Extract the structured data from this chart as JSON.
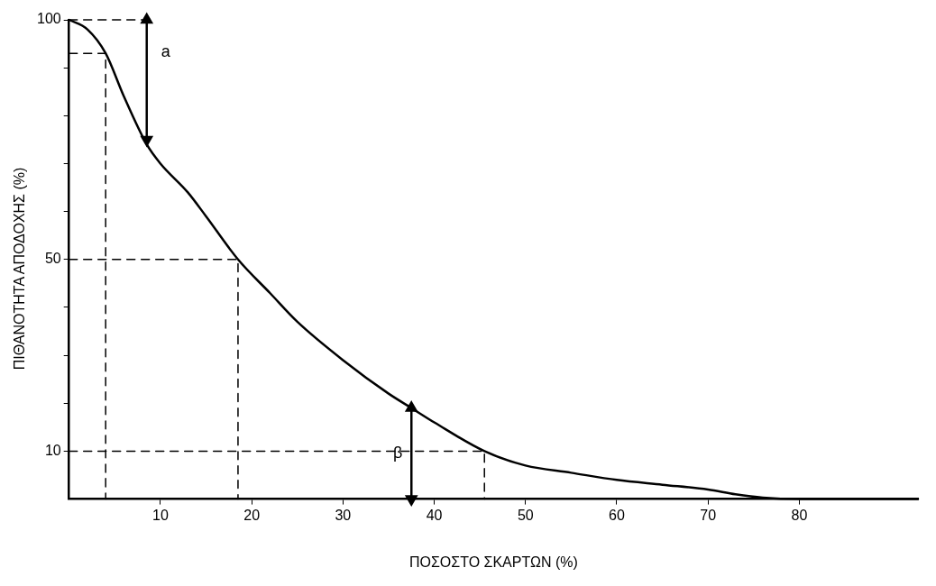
{
  "chart_data": {
    "type": "line",
    "xlabel": "ΠΟΣΟΣΤΟ ΣΚΑΡΤΩΝ (%)",
    "ylabel": "ΠΙΘΑΝΟΤΗΤΑ ΑΠΟΔΟΧΗΣ (%)",
    "xlim": [
      0,
      93
    ],
    "xticks": [
      10,
      20,
      30,
      40,
      50,
      60,
      70,
      80
    ],
    "ylim": [
      0,
      100
    ],
    "yticks": [
      10,
      {
        "value": 20,
        "label": null
      },
      {
        "value": 30,
        "label": null
      },
      {
        "value": 40,
        "label": null
      },
      50,
      {
        "value": 60,
        "label": null
      },
      {
        "value": 70,
        "label": null
      },
      {
        "value": 80,
        "label": null
      },
      {
        "value": 90,
        "label": null
      },
      100
    ],
    "grid": false,
    "legend": false,
    "line_style": "solid",
    "series": [
      {
        "color": "#000000",
        "x": [
          0,
          2,
          4,
          6,
          8.5,
          10,
          13,
          15,
          18.5,
          22,
          25,
          30,
          35,
          37.5,
          40,
          45.5,
          50,
          55,
          60,
          65,
          70,
          73,
          76,
          80,
          93
        ],
        "values": [
          100,
          98,
          93,
          84,
          74,
          70,
          64,
          59,
          50,
          43,
          37,
          29,
          22,
          19,
          16,
          10,
          7,
          5.5,
          4,
          3,
          2,
          1,
          0.3,
          0,
          0
        ]
      },
      {
        "color": "#000000",
        "line_style": "dashed",
        "x": [
          0,
          8.5
        ],
        "values": [
          100,
          100
        ]
      },
      {
        "color": "#000000",
        "line_style": "dashed",
        "x": [
          0,
          4,
          4
        ],
        "values": [
          93,
          93,
          0
        ]
      },
      {
        "color": "#000000",
        "line_style": "dashed",
        "x": [
          0,
          18.5,
          18.5
        ],
        "values": [
          50,
          50,
          0
        ]
      },
      {
        "color": "#000000",
        "line_style": "dashed",
        "x": [
          0,
          45.5,
          45.5
        ],
        "values": [
          10,
          10,
          0
        ]
      },
      {
        "color": "#000000",
        "marker": "triangle",
        "x": [
          8.5,
          8.5
        ],
        "values": [
          100,
          75
        ]
      },
      {
        "color": "#000000",
        "marker": "triangle",
        "x": [
          37.5,
          37.5
        ],
        "values": [
          19,
          0
        ]
      }
    ],
    "annotations": [
      "a",
      "β"
    ]
  }
}
